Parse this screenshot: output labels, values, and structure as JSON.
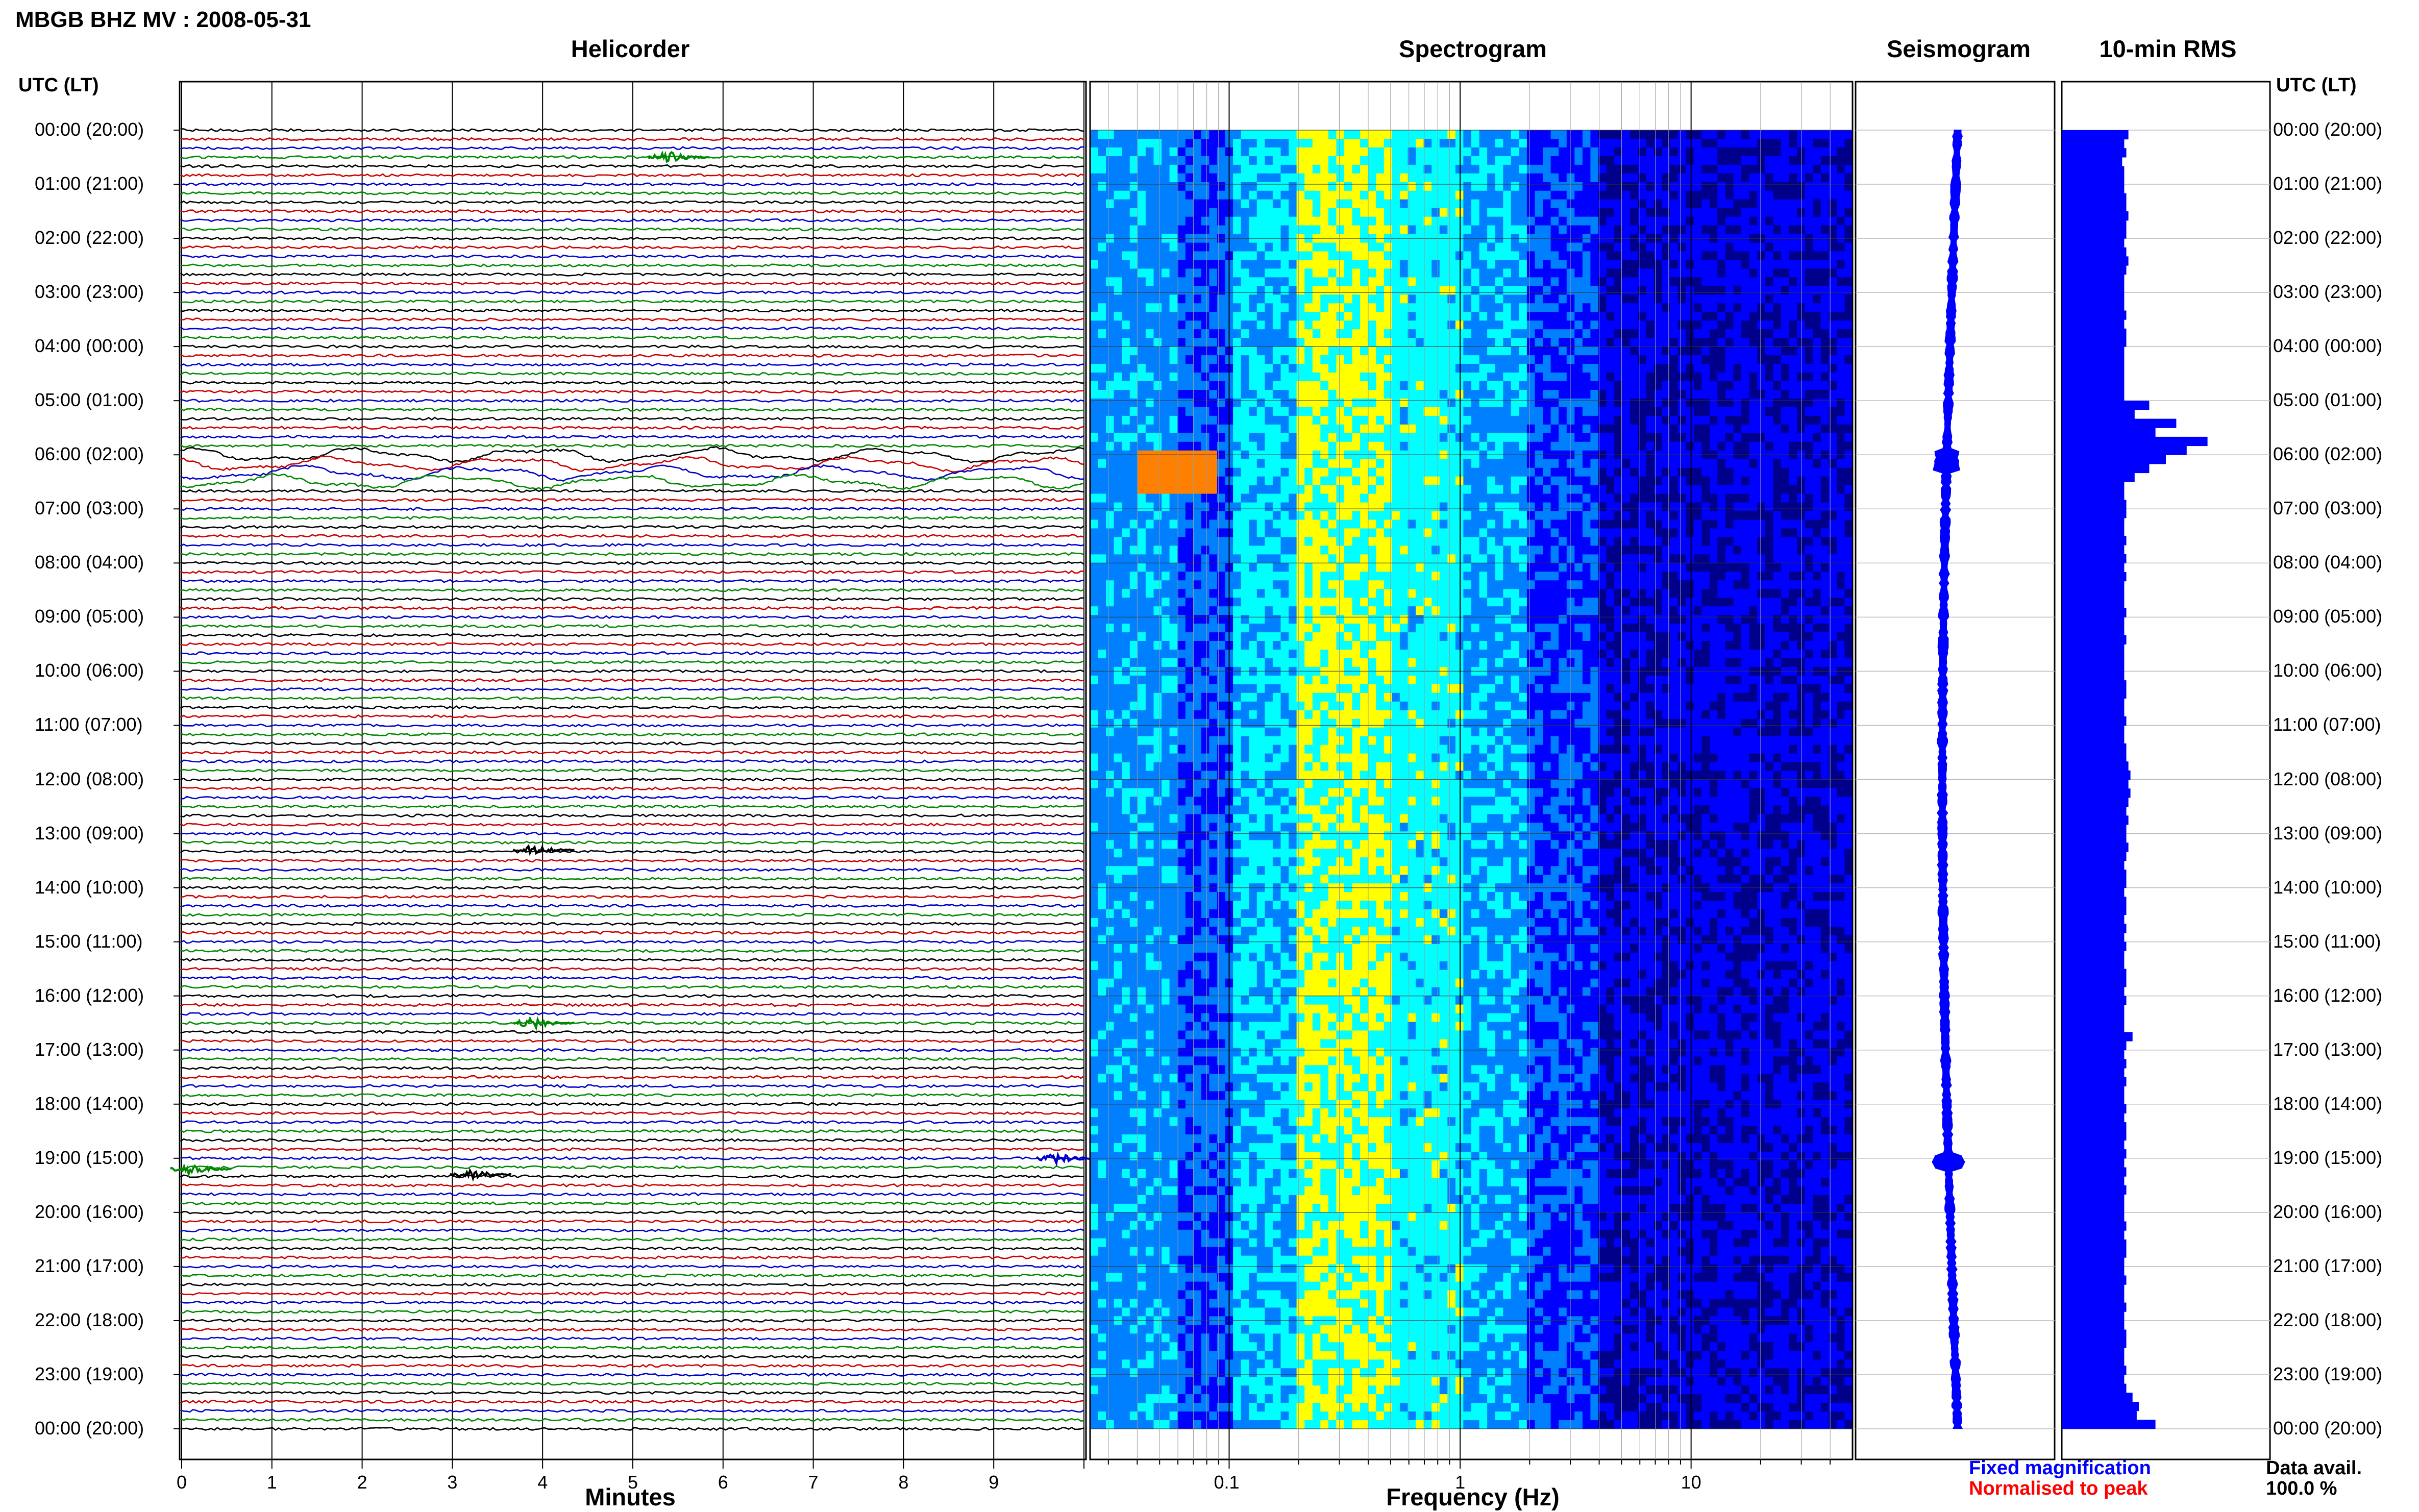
{
  "header": {
    "title": "MBGB BHZ MV : 2008-05-31"
  },
  "time_axis": {
    "heading": "UTC (LT)",
    "labels": [
      "00:00 (20:00)",
      "01:00 (21:00)",
      "02:00 (22:00)",
      "03:00 (23:00)",
      "04:00 (00:00)",
      "05:00 (01:00)",
      "06:00 (02:00)",
      "07:00 (03:00)",
      "08:00 (04:00)",
      "09:00 (05:00)",
      "10:00 (06:00)",
      "11:00 (07:00)",
      "12:00 (08:00)",
      "13:00 (09:00)",
      "14:00 (10:00)",
      "15:00 (11:00)",
      "16:00 (12:00)",
      "17:00 (13:00)",
      "18:00 (14:00)",
      "19:00 (15:00)",
      "20:00 (16:00)",
      "21:00 (17:00)",
      "22:00 (18:00)",
      "23:00 (19:00)",
      "00:00 (20:00)"
    ]
  },
  "chart_data": [
    {
      "type": "line",
      "title": "Helicorder",
      "xlabel": "Minutes",
      "x_ticks": [
        "0",
        "1",
        "2",
        "3",
        "4",
        "5",
        "6",
        "7",
        "8",
        "9"
      ],
      "xlim": [
        0,
        10
      ],
      "traces_per_hour": 6,
      "trace_colors": [
        "#000000",
        "#cc0000",
        "#0000cc",
        "#008800"
      ],
      "events": [
        {
          "hour": 0.5,
          "minute": 5.4,
          "color": "#008800"
        },
        {
          "hour": 13.3,
          "minute": 3.9,
          "color": "#000000"
        },
        {
          "hour": 16.5,
          "minute": 3.9,
          "color": "#008800"
        },
        {
          "hour": 19.0,
          "minute": 9.7,
          "color": "#0000cc"
        },
        {
          "hour": 19.2,
          "minute": 0.1,
          "color": "#008800"
        },
        {
          "hour": 19.3,
          "minute": 3.2,
          "color": "#000000"
        }
      ]
    },
    {
      "type": "heatmap",
      "title": "Spectrogram",
      "xlabel": "Frequency (Hz)",
      "x_scale": "log",
      "x_ticks": [
        "0.1",
        "1",
        "10"
      ],
      "xlim": [
        0.025,
        50
      ],
      "colormap": [
        "#00008b",
        "#0000ff",
        "#0080ff",
        "#00ffff",
        "#ffff00",
        "#ff8000"
      ]
    },
    {
      "type": "line",
      "title": "Seismogram",
      "legend": [
        {
          "label": "Fixed magnification",
          "color": "#0000ff"
        },
        {
          "label": "Normalised to peak",
          "color": "#ff0000"
        }
      ]
    },
    {
      "type": "bar",
      "title": "10-min RMS",
      "bar_color": "#0000ff",
      "rms_relative": [
        0.32,
        0.3,
        0.31,
        0.29,
        0.3,
        0.3,
        0.3,
        0.31,
        0.31,
        0.32,
        0.31,
        0.31,
        0.3,
        0.31,
        0.32,
        0.31,
        0.3,
        0.3,
        0.3,
        0.3,
        0.31,
        0.3,
        0.31,
        0.31,
        0.3,
        0.3,
        0.3,
        0.3,
        0.3,
        0.3,
        0.42,
        0.35,
        0.55,
        0.45,
        0.7,
        0.6,
        0.5,
        0.42,
        0.35,
        0.3,
        0.3,
        0.31,
        0.31,
        0.3,
        0.3,
        0.31,
        0.3,
        0.31,
        0.3,
        0.31,
        0.3,
        0.3,
        0.3,
        0.31,
        0.3,
        0.3,
        0.31,
        0.3,
        0.3,
        0.3,
        0.3,
        0.31,
        0.31,
        0.3,
        0.3,
        0.31,
        0.3,
        0.3,
        0.31,
        0.31,
        0.32,
        0.33,
        0.32,
        0.33,
        0.32,
        0.31,
        0.32,
        0.31,
        0.31,
        0.32,
        0.31,
        0.3,
        0.31,
        0.31,
        0.3,
        0.31,
        0.31,
        0.3,
        0.31,
        0.3,
        0.31,
        0.3,
        0.3,
        0.31,
        0.31,
        0.3,
        0.31,
        0.3,
        0.3,
        0.3,
        0.34,
        0.31,
        0.3,
        0.31,
        0.3,
        0.31,
        0.3,
        0.3,
        0.31,
        0.3,
        0.31,
        0.31,
        0.3,
        0.31,
        0.3,
        0.31,
        0.3,
        0.31,
        0.3,
        0.3,
        0.3,
        0.31,
        0.3,
        0.31,
        0.31,
        0.3,
        0.3,
        0.31,
        0.3,
        0.3,
        0.31,
        0.3,
        0.3,
        0.31,
        0.31,
        0.3,
        0.3,
        0.31,
        0.3,
        0.31,
        0.34,
        0.37,
        0.36,
        0.45
      ]
    }
  ],
  "footer": {
    "data_avail_label": "Data avail.",
    "data_avail_value": "100.0 %"
  }
}
